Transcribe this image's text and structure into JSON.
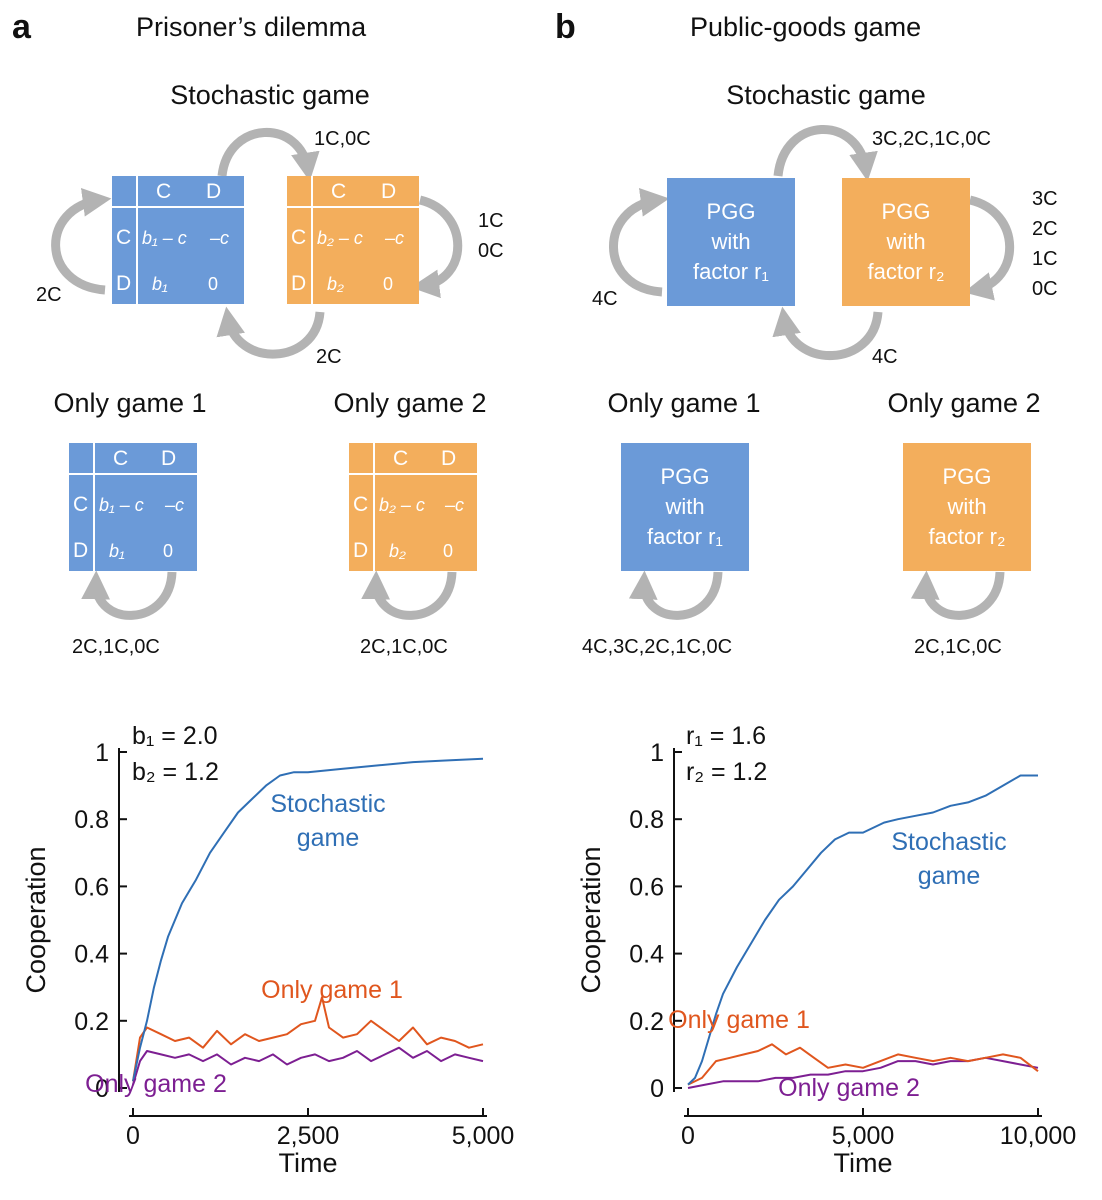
{
  "panels": [
    {
      "letter": "a",
      "title": "Prisoner’s dilemma",
      "stochastic_title": "Stochastic game",
      "only1_title": "Only game 1",
      "only2_title": "Only game 2",
      "game1": {
        "col_c": "C",
        "col_d": "D",
        "row_c": "C",
        "row_d": "D",
        "cc": "b₁ – c",
        "cd": "–c",
        "dc": "b₁",
        "dd": "0"
      },
      "game2": {
        "col_c": "C",
        "col_d": "D",
        "row_c": "C",
        "row_d": "D",
        "cc": "b₂ – c",
        "cd": "–c",
        "dc": "b₂",
        "dd": "0"
      },
      "trans_top": "1C,0C",
      "trans_right_1": "1C",
      "trans_right_2": "0C",
      "trans_left": "2C",
      "trans_bottom": "2C",
      "only1_loop": "2C,1C,0C",
      "only2_loop": "2C,1C,0C",
      "param1": "b₁ = 2.0",
      "param2": "b₂ = 1.2"
    },
    {
      "letter": "b",
      "title": "Public-goods game",
      "stochastic_title": "Stochastic game",
      "only1_title": "Only game 1",
      "only2_title": "Only game 2",
      "game1": {
        "line1": "PGG",
        "line2": "with",
        "line3": "factor r₁"
      },
      "game2": {
        "line1": "PGG",
        "line2": "with",
        "line3": "factor r₂"
      },
      "trans_top": "3C,2C,1C,0C",
      "trans_right": [
        "3C",
        "2C",
        "1C",
        "0C"
      ],
      "trans_left": "4C",
      "trans_bottom": "4C",
      "only1_loop": "4C,3C,2C,1C,0C",
      "only2_loop": "2C,1C,0C",
      "param1": "r₁ = 1.6",
      "param2": "r₂ = 1.2"
    }
  ],
  "colors": {
    "blue_box": "#6b9ad8",
    "orange_box": "#f3ae5c",
    "arrow": "#b3b3b3",
    "stochastic": "#2f6fb5",
    "only1": "#e0561e",
    "only2": "#7d1f92"
  },
  "chart_data": [
    {
      "type": "line",
      "xlabel": "Time",
      "ylabel": "Cooperation",
      "xlim": [
        0,
        5000
      ],
      "ylim": [
        0,
        1
      ],
      "xticks": [
        0,
        2500,
        5000
      ],
      "xtick_labels": [
        "0",
        "2,500",
        "5,000"
      ],
      "yticks": [
        0,
        0.2,
        0.4,
        0.6,
        0.8,
        1
      ],
      "ytick_labels": [
        "0",
        "0.2",
        "0.4",
        "0.6",
        "0.8",
        "1"
      ],
      "series": [
        {
          "name": "Stochastic game",
          "label_lines": [
            "Stochastic",
            "game"
          ],
          "color": "#2f6fb5",
          "x": [
            0,
            100,
            200,
            300,
            400,
            500,
            700,
            900,
            1100,
            1300,
            1500,
            1700,
            1900,
            2100,
            2300,
            2500,
            3000,
            3500,
            4000,
            4500,
            5000
          ],
          "y": [
            0.02,
            0.12,
            0.2,
            0.3,
            0.38,
            0.45,
            0.55,
            0.62,
            0.7,
            0.76,
            0.82,
            0.86,
            0.9,
            0.93,
            0.94,
            0.94,
            0.95,
            0.96,
            0.97,
            0.975,
            0.98
          ]
        },
        {
          "name": "Only game 1",
          "label_lines": [
            "Only game 1"
          ],
          "color": "#e0561e",
          "x": [
            0,
            100,
            200,
            400,
            600,
            800,
            1000,
            1200,
            1400,
            1600,
            1800,
            2000,
            2200,
            2400,
            2600,
            2700,
            2800,
            3000,
            3200,
            3400,
            3600,
            3800,
            4000,
            4200,
            4400,
            4600,
            4800,
            5000
          ],
          "y": [
            0.02,
            0.15,
            0.18,
            0.16,
            0.14,
            0.15,
            0.12,
            0.17,
            0.13,
            0.16,
            0.14,
            0.15,
            0.16,
            0.19,
            0.2,
            0.27,
            0.18,
            0.15,
            0.16,
            0.2,
            0.17,
            0.14,
            0.18,
            0.13,
            0.15,
            0.14,
            0.12,
            0.13
          ]
        },
        {
          "name": "Only game 2",
          "label_lines": [
            "Only game 2"
          ],
          "color": "#7d1f92",
          "x": [
            0,
            100,
            200,
            400,
            600,
            800,
            1000,
            1200,
            1400,
            1600,
            1800,
            2000,
            2200,
            2400,
            2600,
            2800,
            3000,
            3200,
            3400,
            3600,
            3800,
            4000,
            4200,
            4400,
            4600,
            4800,
            5000
          ],
          "y": [
            0.01,
            0.08,
            0.11,
            0.1,
            0.09,
            0.1,
            0.08,
            0.1,
            0.07,
            0.09,
            0.08,
            0.1,
            0.07,
            0.09,
            0.1,
            0.08,
            0.09,
            0.11,
            0.08,
            0.1,
            0.12,
            0.09,
            0.11,
            0.08,
            0.1,
            0.09,
            0.08
          ]
        }
      ]
    },
    {
      "type": "line",
      "xlabel": "Time",
      "ylabel": "Cooperation",
      "xlim": [
        0,
        10000
      ],
      "ylim": [
        0,
        1
      ],
      "xticks": [
        0,
        5000,
        10000
      ],
      "xtick_labels": [
        "0",
        "5,000",
        "10,000"
      ],
      "yticks": [
        0,
        0.2,
        0.4,
        0.6,
        0.8,
        1
      ],
      "ytick_labels": [
        "0",
        "0.2",
        "0.4",
        "0.6",
        "0.8",
        "1"
      ],
      "series": [
        {
          "name": "Stochastic game",
          "label_lines": [
            "Stochastic",
            "game"
          ],
          "color": "#2f6fb5",
          "x": [
            0,
            200,
            400,
            600,
            800,
            1000,
            1400,
            1800,
            2200,
            2600,
            3000,
            3400,
            3800,
            4200,
            4600,
            5000,
            5600,
            6000,
            6500,
            7000,
            7500,
            8000,
            8500,
            9000,
            9500,
            10000
          ],
          "y": [
            0.01,
            0.03,
            0.08,
            0.15,
            0.22,
            0.28,
            0.36,
            0.43,
            0.5,
            0.56,
            0.6,
            0.65,
            0.7,
            0.74,
            0.76,
            0.76,
            0.79,
            0.8,
            0.81,
            0.82,
            0.84,
            0.85,
            0.87,
            0.9,
            0.93,
            0.93
          ]
        },
        {
          "name": "Only game 1",
          "label_lines": [
            "Only game 1"
          ],
          "color": "#e0561e",
          "x": [
            0,
            400,
            800,
            1200,
            1600,
            2000,
            2400,
            2800,
            3200,
            3600,
            4000,
            4500,
            5000,
            5500,
            6000,
            6500,
            7000,
            7500,
            8000,
            8500,
            9000,
            9500,
            10000
          ],
          "y": [
            0.01,
            0.03,
            0.08,
            0.09,
            0.1,
            0.11,
            0.13,
            0.1,
            0.12,
            0.09,
            0.06,
            0.07,
            0.06,
            0.08,
            0.1,
            0.09,
            0.08,
            0.09,
            0.08,
            0.09,
            0.1,
            0.09,
            0.05
          ]
        },
        {
          "name": "Only game 2",
          "label_lines": [
            "Only game 2"
          ],
          "color": "#7d1f92",
          "x": [
            0,
            500,
            1000,
            1500,
            2000,
            2500,
            3000,
            3500,
            4000,
            4500,
            5000,
            5500,
            6000,
            6500,
            7000,
            7500,
            8000,
            8500,
            9000,
            9500,
            10000
          ],
          "y": [
            0.0,
            0.01,
            0.02,
            0.02,
            0.02,
            0.03,
            0.03,
            0.04,
            0.04,
            0.05,
            0.05,
            0.06,
            0.08,
            0.08,
            0.07,
            0.08,
            0.08,
            0.09,
            0.08,
            0.07,
            0.06
          ]
        }
      ]
    }
  ]
}
